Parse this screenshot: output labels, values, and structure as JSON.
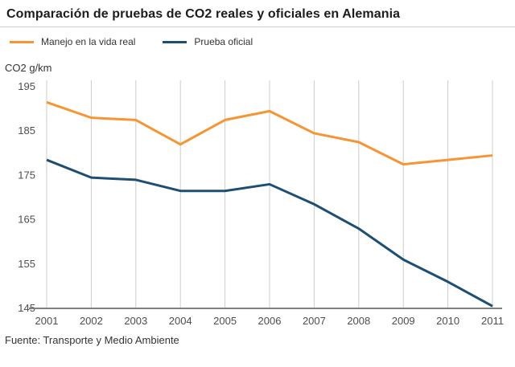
{
  "header": {
    "title": "Comparación de pruebas de CO2 reales y oficiales en Alemania"
  },
  "legend": [
    {
      "label": "Manejo en la vida real",
      "color": "#f79433"
    },
    {
      "label": "Prueba oficial",
      "color": "#1d4e73"
    }
  ],
  "axis": {
    "unit_label": "CO2 g/km"
  },
  "footer": {
    "source": "Fuente: Transporte y Medio Ambiente"
  },
  "chart_data": {
    "type": "line",
    "title": "Comparación de pruebas de CO2 reales y oficiales en Alemania",
    "xlabel": "",
    "ylabel": "CO2 g/km",
    "x": [
      2001,
      2002,
      2003,
      2004,
      2005,
      2006,
      2007,
      2008,
      2009,
      2010,
      2011
    ],
    "series": [
      {
        "name": "Manejo en la vida real",
        "color": "#f79433",
        "values": [
          191.5,
          188,
          187.5,
          182,
          187.5,
          189.5,
          184.5,
          182.5,
          177.5,
          178.5,
          179.5
        ]
      },
      {
        "name": "Prueba oficial",
        "color": "#1d4e73",
        "values": [
          178.5,
          174.5,
          174,
          171.5,
          171.5,
          173,
          168.5,
          163,
          156,
          151,
          145.5
        ]
      }
    ],
    "ylim": [
      145,
      195
    ],
    "yticks": [
      145,
      155,
      165,
      175,
      185,
      195
    ],
    "grid": "vertical",
    "grid_color": "#cccccc",
    "axis_color": "#808080",
    "tick_text_color": "#4d4d4d",
    "legend_position": "top-left"
  }
}
